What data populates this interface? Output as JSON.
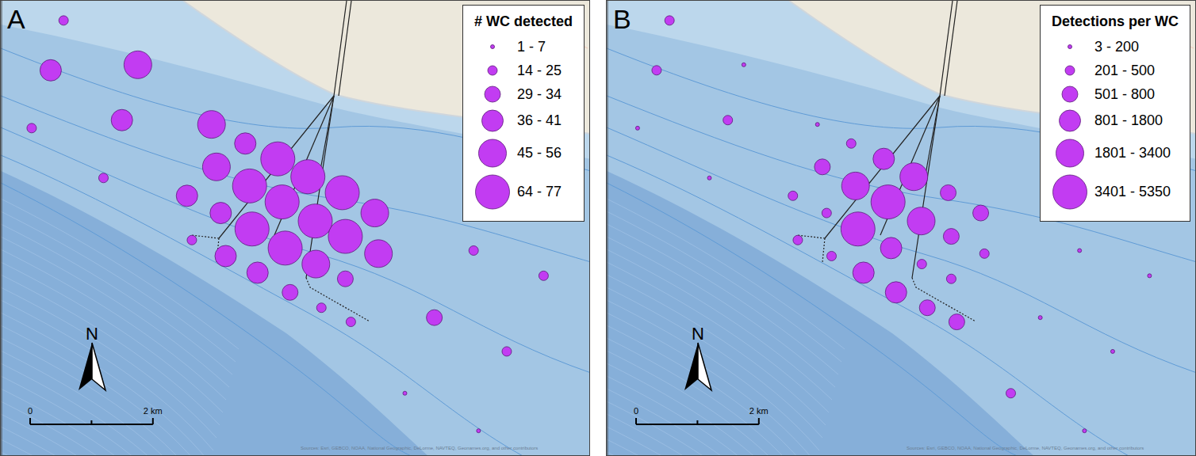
{
  "chart_data": [
    {
      "type": "scatter",
      "panel_label": "A",
      "legend_title": "# WC detected",
      "size_classes": [
        "1 - 7",
        "14 - 25",
        "29 - 34",
        "36 - 41",
        "45 - 56",
        "64 - 77"
      ],
      "x": [
        1.01,
        0.8,
        2.22,
        0.49,
        1.96,
        1.66,
        3.42,
        3.97,
        4.5,
        4.99,
        3.5,
        4.04,
        5.55,
        3.02,
        4.57,
        6.08,
        3.57,
        5.11,
        4.08,
        5.6,
        3.1,
        4.62,
        6.14,
        3.65,
        5.12,
        4.17,
        5.6,
        4.7,
        5.21,
        5.69,
        7.05,
        7.69,
        8.83,
        8.23,
        6.57,
        7.77
      ],
      "y": [
        7.08,
        6.27,
        6.36,
        5.33,
        5.46,
        4.52,
        5.39,
        5.08,
        4.83,
        4.54,
        4.7,
        4.39,
        4.28,
        4.23,
        4.13,
        3.95,
        3.95,
        3.82,
        3.69,
        3.57,
        3.51,
        3.38,
        3.29,
        3.25,
        3.12,
        2.98,
        2.88,
        2.66,
        2.41,
        2.18,
        2.25,
        3.34,
        2.93,
        1.7,
        1.02,
        0.41
      ],
      "size_class": [
        1,
        3,
        4,
        1,
        3,
        1,
        4,
        3,
        5,
        5,
        4,
        5,
        5,
        3,
        5,
        4,
        3,
        5,
        5,
        5,
        1,
        5,
        4,
        3,
        4,
        3,
        2,
        2,
        1,
        1,
        2,
        1,
        1,
        1,
        0,
        0
      ],
      "xlim": [
        0,
        9.6
      ],
      "ylim": [
        0,
        7.4
      ],
      "color": "#c23cf2",
      "tick_labels": false,
      "legend": "top right"
    },
    {
      "type": "scatter",
      "panel_label": "B",
      "legend_title": "Detections per WC",
      "size_classes": [
        "3 - 200",
        "201 - 500",
        "501 - 800",
        "801 - 1800",
        "1801 - 3400",
        "3401 - 5350"
      ],
      "x": [
        1.01,
        0.8,
        2.22,
        0.49,
        1.96,
        1.66,
        3.42,
        3.97,
        4.5,
        4.99,
        3.5,
        4.04,
        5.55,
        3.02,
        4.57,
        6.08,
        3.57,
        5.11,
        4.08,
        5.6,
        3.1,
        4.62,
        6.14,
        3.65,
        5.12,
        4.17,
        5.6,
        4.7,
        5.21,
        5.69,
        7.05,
        7.69,
        8.83,
        8.23,
        6.57,
        7.77
      ],
      "y": [
        7.08,
        6.27,
        6.36,
        5.33,
        5.46,
        4.52,
        5.39,
        5.08,
        4.83,
        4.54,
        4.7,
        4.39,
        4.28,
        4.23,
        4.13,
        3.95,
        3.95,
        3.82,
        3.69,
        3.57,
        3.51,
        3.38,
        3.29,
        3.25,
        3.12,
        2.98,
        2.88,
        2.66,
        2.41,
        2.18,
        2.25,
        3.34,
        2.93,
        1.7,
        1.02,
        0.41
      ],
      "size_class": [
        1,
        1,
        0,
        0,
        1,
        0,
        0,
        1,
        3,
        4,
        2,
        4,
        2,
        1,
        5,
        2,
        1,
        4,
        5,
        2,
        1,
        3,
        1,
        1,
        1,
        3,
        1,
        3,
        2,
        2,
        0,
        0,
        0,
        0,
        1,
        0
      ],
      "xlim": [
        0,
        9.6
      ],
      "ylim": [
        0,
        7.4
      ],
      "color": "#c23cf2",
      "tick_labels": false,
      "legend": "top right"
    }
  ],
  "map": {
    "north_label": "N",
    "scale_km": 2,
    "scale_labels": [
      "0",
      "2 km"
    ],
    "attribution": "Sources: Esri, GEBCO, NOAA, National Geographic, DeLorme, NAVTEQ, Geonames.org, and other contributors"
  }
}
